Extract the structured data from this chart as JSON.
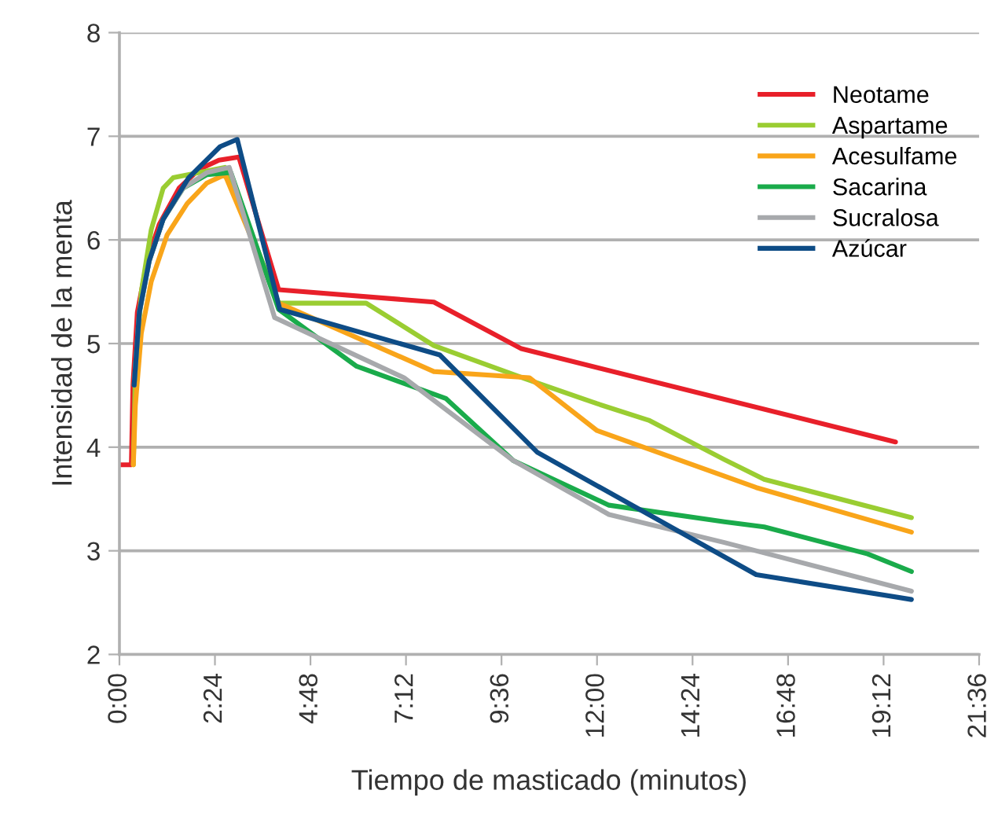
{
  "chart_data": {
    "type": "line",
    "xlabel": "Tiempo de masticado (minutos)",
    "ylabel": "Intensidad de la menta",
    "xlim": [
      0,
      21.6
    ],
    "ylim": [
      2,
      8
    ],
    "xticks": [
      {
        "value": 0,
        "label": "0:00"
      },
      {
        "value": 2.4,
        "label": "2:24"
      },
      {
        "value": 4.8,
        "label": "4:48"
      },
      {
        "value": 7.2,
        "label": "7:12"
      },
      {
        "value": 9.6,
        "label": "9:36"
      },
      {
        "value": 12,
        "label": "12:00"
      },
      {
        "value": 14.4,
        "label": "14:24"
      },
      {
        "value": 16.8,
        "label": "16:48"
      },
      {
        "value": 19.2,
        "label": "19:12"
      },
      {
        "value": 21.6,
        "label": "21:36"
      }
    ],
    "yticks": [
      2,
      3,
      4,
      5,
      6,
      7,
      8
    ],
    "grid": "y",
    "legend": "top right",
    "marker": "none",
    "line_style": "solid",
    "series": [
      {
        "name": "Neotame",
        "color": "#e8202a",
        "x": [
          0,
          0.3,
          0.34,
          0.45,
          0.7,
          1.0,
          1.5,
          2.0,
          2.5,
          3.0,
          4.0,
          7.9,
          10.1,
          19.5
        ],
        "values": [
          3.83,
          3.83,
          4.6,
          5.3,
          5.8,
          6.15,
          6.5,
          6.68,
          6.77,
          6.8,
          5.52,
          5.4,
          4.95,
          4.05
        ]
      },
      {
        "name": "Aspartame",
        "color": "#9acd32",
        "x": [
          0.35,
          0.4,
          0.55,
          0.8,
          1.1,
          1.35,
          2.0,
          2.65,
          4.0,
          6.2,
          7.9,
          10.2,
          12.0,
          13.3,
          15.2,
          16.2,
          19.9
        ],
        "values": [
          3.83,
          4.7,
          5.5,
          6.1,
          6.5,
          6.6,
          6.65,
          6.7,
          5.39,
          5.39,
          4.98,
          4.66,
          4.42,
          4.26,
          3.88,
          3.69,
          3.32
        ]
      },
      {
        "name": "Acesulfame",
        "color": "#f9a51a",
        "x": [
          0.35,
          0.4,
          0.55,
          0.8,
          1.2,
          1.7,
          2.2,
          2.65,
          4.0,
          7.9,
          10.3,
          12.0,
          15.2,
          16.0,
          19.9
        ],
        "values": [
          3.83,
          4.4,
          5.1,
          5.6,
          6.05,
          6.35,
          6.55,
          6.63,
          5.39,
          4.73,
          4.67,
          4.16,
          3.72,
          3.61,
          3.18
        ]
      },
      {
        "name": "Sacarina",
        "color": "#1aab4b",
        "x": [
          0.37,
          0.5,
          0.75,
          1.1,
          1.6,
          2.2,
          2.8,
          4.0,
          5.96,
          8.2,
          9.9,
          12.3,
          15.2,
          16.2,
          18.8,
          19.9
        ],
        "values": [
          4.6,
          5.3,
          5.8,
          6.2,
          6.5,
          6.63,
          6.65,
          5.33,
          4.78,
          4.47,
          3.87,
          3.44,
          3.28,
          3.23,
          2.97,
          2.8
        ]
      },
      {
        "name": "Sucralosa",
        "color": "#a7a9ac",
        "x": [
          0.37,
          0.5,
          0.75,
          1.1,
          1.6,
          2.2,
          2.76,
          3.9,
          7.15,
          9.9,
          12.3,
          15.2,
          19.9
        ],
        "values": [
          4.6,
          5.3,
          5.8,
          6.2,
          6.5,
          6.65,
          6.7,
          5.25,
          4.67,
          3.87,
          3.35,
          3.08,
          2.61
        ]
      },
      {
        "name": "Azúcar",
        "color": "#0e4c86",
        "x": [
          0.37,
          0.5,
          0.75,
          1.1,
          1.74,
          2.53,
          2.96,
          4.03,
          8.05,
          10.5,
          16.0,
          19.9
        ],
        "values": [
          4.6,
          5.3,
          5.8,
          6.2,
          6.6,
          6.9,
          6.97,
          5.33,
          4.89,
          3.95,
          2.77,
          2.53
        ]
      }
    ]
  }
}
